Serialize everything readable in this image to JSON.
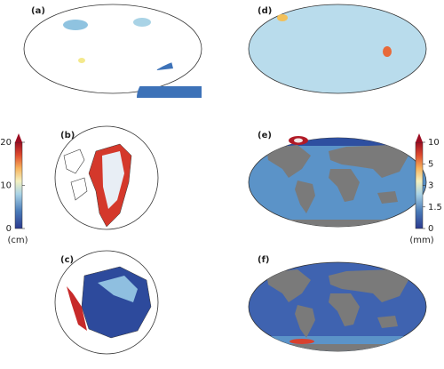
{
  "panels": [
    {
      "label": "(a)"
    },
    {
      "label": "(b)"
    },
    {
      "label": "(c)"
    },
    {
      "label": "(d)"
    },
    {
      "label": "(e)"
    },
    {
      "label": "(f)"
    }
  ],
  "colorbar_left": {
    "label": "(cm)",
    "ticks": [
      0,
      10,
      20
    ]
  },
  "colorbar_right": {
    "label": "(mm)",
    "ticks": [
      0,
      1.5,
      3,
      5,
      10
    ]
  }
}
